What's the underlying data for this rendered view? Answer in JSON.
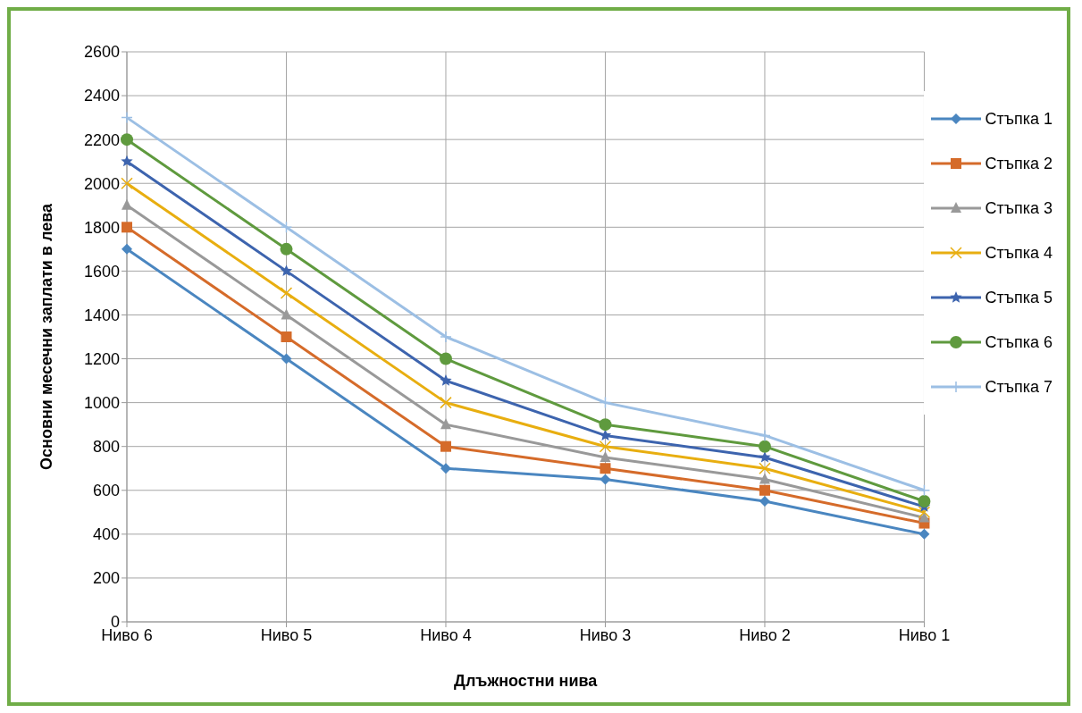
{
  "chart_data": {
    "type": "line",
    "xlabel": "Длъжностни нива",
    "ylabel": "Основни месечни заплати в лева",
    "categories": [
      "Ниво 6",
      "Ниво 5",
      "Ниво 4",
      "Ниво 3",
      "Ниво 2",
      "Ниво 1"
    ],
    "series": [
      {
        "name": "Стъпка 1",
        "color": "#4a86c0",
        "marker": "diamond",
        "values": [
          1700,
          1200,
          700,
          650,
          550,
          400
        ]
      },
      {
        "name": "Стъпка 2",
        "color": "#d56b2a",
        "marker": "square",
        "values": [
          1800,
          1300,
          800,
          700,
          600,
          450
        ]
      },
      {
        "name": "Стъпка 3",
        "color": "#999999",
        "marker": "triangle",
        "values": [
          1900,
          1400,
          900,
          750,
          650,
          475
        ]
      },
      {
        "name": "Стъпка 4",
        "color": "#e8ae10",
        "marker": "cross",
        "values": [
          2000,
          1500,
          1000,
          800,
          700,
          500
        ]
      },
      {
        "name": "Стъпка 5",
        "color": "#3d64ae",
        "marker": "star",
        "values": [
          2100,
          1600,
          1100,
          850,
          750,
          525
        ]
      },
      {
        "name": "Стъпка 6",
        "color": "#5f9a3e",
        "marker": "circle",
        "values": [
          2200,
          1700,
          1200,
          900,
          800,
          550
        ]
      },
      {
        "name": "Стъпка 7",
        "color": "#9cbfe4",
        "marker": "plus",
        "values": [
          2300,
          1800,
          1300,
          1000,
          850,
          600
        ]
      }
    ],
    "ylim": [
      0,
      2600
    ],
    "yticks": [
      0,
      200,
      400,
      600,
      800,
      1000,
      1200,
      1400,
      1600,
      1800,
      2000,
      2200,
      2400,
      2600
    ],
    "grid": true,
    "legend": "right"
  }
}
